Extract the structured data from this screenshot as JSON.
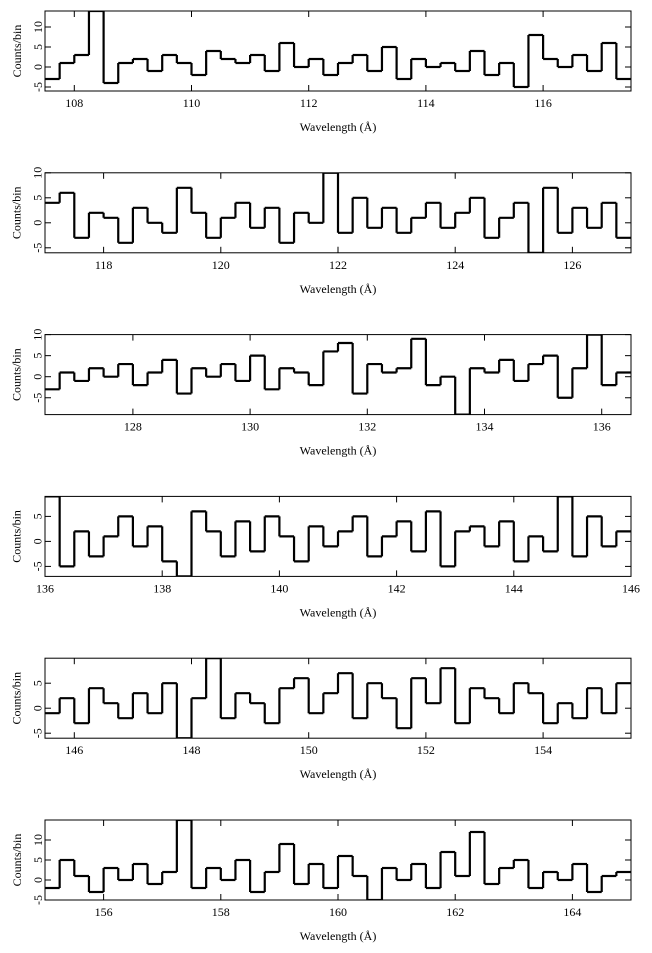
{
  "chart_data": [
    {
      "type": "step",
      "xlabel": "Wavelength (Å)",
      "ylabel": "Counts/bin",
      "xlim": [
        107.5,
        117.5
      ],
      "ylim": [
        -6,
        14
      ],
      "xticks": [
        108,
        110,
        112,
        114,
        116
      ],
      "yticks": [
        -5,
        0,
        5,
        10
      ],
      "x": [
        107.625,
        107.875,
        108.125,
        108.375,
        108.625,
        108.875,
        109.125,
        109.375,
        109.625,
        109.875,
        110.125,
        110.375,
        110.625,
        110.875,
        111.125,
        111.375,
        111.625,
        111.875,
        112.125,
        112.375,
        112.625,
        112.875,
        113.125,
        113.375,
        113.625,
        113.875,
        114.125,
        114.375,
        114.625,
        114.875,
        115.125,
        115.375,
        115.625,
        115.875,
        116.125,
        116.375,
        116.625,
        116.875,
        117.125,
        117.375
      ],
      "values": [
        -3,
        1,
        3,
        14,
        -4,
        1,
        2,
        -1,
        3,
        1,
        -2,
        4,
        2,
        1,
        3,
        -1,
        6,
        0,
        2,
        -2,
        1,
        3,
        -1,
        5,
        -3,
        2,
        0,
        1,
        -1,
        4,
        -2,
        1,
        -5,
        8,
        2,
        0,
        3,
        -1,
        6,
        -3
      ],
      "color": "#000000"
    },
    {
      "type": "step",
      "xlabel": "Wavelength (Å)",
      "ylabel": "Counts/bin",
      "xlim": [
        117,
        127
      ],
      "ylim": [
        -6,
        10
      ],
      "xticks": [
        118,
        120,
        122,
        124,
        126
      ],
      "yticks": [
        -5,
        0,
        5,
        10
      ],
      "x": [
        117.125,
        117.375,
        117.625,
        117.875,
        118.125,
        118.375,
        118.625,
        118.875,
        119.125,
        119.375,
        119.625,
        119.875,
        120.125,
        120.375,
        120.625,
        120.875,
        121.125,
        121.375,
        121.625,
        121.875,
        122.125,
        122.375,
        122.625,
        122.875,
        123.125,
        123.375,
        123.625,
        123.875,
        124.125,
        124.375,
        124.625,
        124.875,
        125.125,
        125.375,
        125.625,
        125.875,
        126.125,
        126.375,
        126.625,
        126.875
      ],
      "values": [
        4,
        6,
        -3,
        2,
        1,
        -4,
        3,
        0,
        -2,
        7,
        2,
        -3,
        1,
        4,
        -1,
        3,
        -4,
        2,
        0,
        10,
        -2,
        5,
        -1,
        3,
        -2,
        1,
        4,
        -1,
        2,
        5,
        -3,
        1,
        4,
        -6,
        7,
        -2,
        3,
        -1,
        4,
        -3
      ],
      "color": "#000000"
    },
    {
      "type": "step",
      "xlabel": "Wavelength (Å)",
      "ylabel": "Counts/bin",
      "xlim": [
        126.5,
        136.5
      ],
      "ylim": [
        -9,
        10
      ],
      "xticks": [
        128,
        130,
        132,
        134,
        136
      ],
      "yticks": [
        -5,
        0,
        5,
        10
      ],
      "x": [
        126.625,
        126.875,
        127.125,
        127.375,
        127.625,
        127.875,
        128.125,
        128.375,
        128.625,
        128.875,
        129.125,
        129.375,
        129.625,
        129.875,
        130.125,
        130.375,
        130.625,
        130.875,
        131.125,
        131.375,
        131.625,
        131.875,
        132.125,
        132.375,
        132.625,
        132.875,
        133.125,
        133.375,
        133.625,
        133.875,
        134.125,
        134.375,
        134.625,
        134.875,
        135.125,
        135.375,
        135.625,
        135.875,
        136.125,
        136.375
      ],
      "values": [
        -3,
        1,
        -1,
        2,
        0,
        3,
        -2,
        1,
        4,
        -4,
        2,
        0,
        3,
        -1,
        5,
        -3,
        2,
        1,
        -2,
        6,
        8,
        -4,
        3,
        1,
        2,
        9,
        -2,
        0,
        -9,
        2,
        1,
        4,
        -1,
        3,
        5,
        -5,
        2,
        10,
        -2,
        1
      ],
      "color": "#000000"
    },
    {
      "type": "step",
      "xlabel": "Wavelength (Å)",
      "ylabel": "Counts/bin",
      "xlim": [
        136,
        146
      ],
      "ylim": [
        -7,
        9
      ],
      "xticks": [
        136,
        138,
        140,
        142,
        144,
        146
      ],
      "yticks": [
        -5,
        0,
        5
      ],
      "x": [
        136.125,
        136.375,
        136.625,
        136.875,
        137.125,
        137.375,
        137.625,
        137.875,
        138.125,
        138.375,
        138.625,
        138.875,
        139.125,
        139.375,
        139.625,
        139.875,
        140.125,
        140.375,
        140.625,
        140.875,
        141.125,
        141.375,
        141.625,
        141.875,
        142.125,
        142.375,
        142.625,
        142.875,
        143.125,
        143.375,
        143.625,
        143.875,
        144.125,
        144.375,
        144.625,
        144.875,
        145.125,
        145.375,
        145.625,
        145.875
      ],
      "values": [
        9,
        -5,
        2,
        -3,
        1,
        5,
        -1,
        3,
        -4,
        -7,
        6,
        2,
        -3,
        4,
        -2,
        5,
        1,
        -4,
        3,
        -1,
        2,
        5,
        -3,
        1,
        4,
        -2,
        6,
        -5,
        2,
        3,
        -1,
        4,
        -4,
        1,
        -2,
        9,
        -3,
        5,
        -1,
        2
      ],
      "color": "#000000"
    },
    {
      "type": "step",
      "xlabel": "Wavelength (Å)",
      "ylabel": "Counts/bin",
      "xlim": [
        145.5,
        155.5
      ],
      "ylim": [
        -6,
        10
      ],
      "xticks": [
        146,
        148,
        150,
        152,
        154
      ],
      "yticks": [
        -5,
        0,
        5
      ],
      "x": [
        145.625,
        145.875,
        146.125,
        146.375,
        146.625,
        146.875,
        147.125,
        147.375,
        147.625,
        147.875,
        148.125,
        148.375,
        148.625,
        148.875,
        149.125,
        149.375,
        149.625,
        149.875,
        150.125,
        150.375,
        150.625,
        150.875,
        151.125,
        151.375,
        151.625,
        151.875,
        152.125,
        152.375,
        152.625,
        152.875,
        153.125,
        153.375,
        153.625,
        153.875,
        154.125,
        154.375,
        154.625,
        154.875,
        155.125,
        155.375
      ],
      "values": [
        -1,
        2,
        -3,
        4,
        1,
        -2,
        3,
        -1,
        5,
        -6,
        2,
        10,
        -2,
        3,
        1,
        -3,
        4,
        6,
        -1,
        3,
        7,
        -2,
        5,
        2,
        -4,
        6,
        1,
        8,
        -3,
        4,
        2,
        -1,
        5,
        3,
        -3,
        1,
        -2,
        4,
        -1,
        5
      ],
      "color": "#000000"
    },
    {
      "type": "step",
      "xlabel": "Wavelength (Å)",
      "ylabel": "Counts/bin",
      "xlim": [
        155,
        165
      ],
      "ylim": [
        -5,
        15
      ],
      "xticks": [
        156,
        158,
        160,
        162,
        164
      ],
      "yticks": [
        -5,
        0,
        5,
        10
      ],
      "x": [
        155.125,
        155.375,
        155.625,
        155.875,
        156.125,
        156.375,
        156.625,
        156.875,
        157.125,
        157.375,
        157.625,
        157.875,
        158.125,
        158.375,
        158.625,
        158.875,
        159.125,
        159.375,
        159.625,
        159.875,
        160.125,
        160.375,
        160.625,
        160.875,
        161.125,
        161.375,
        161.625,
        161.875,
        162.125,
        162.375,
        162.625,
        162.875,
        163.125,
        163.375,
        163.625,
        163.875,
        164.125,
        164.375,
        164.625,
        164.875
      ],
      "values": [
        -2,
        5,
        1,
        -3,
        3,
        0,
        4,
        -1,
        2,
        15,
        -2,
        3,
        0,
        5,
        -3,
        2,
        9,
        -1,
        4,
        -2,
        6,
        1,
        -5,
        3,
        0,
        4,
        -2,
        7,
        1,
        12,
        -1,
        3,
        5,
        -2,
        2,
        0,
        4,
        -3,
        1,
        2
      ],
      "color": "#000000"
    }
  ]
}
